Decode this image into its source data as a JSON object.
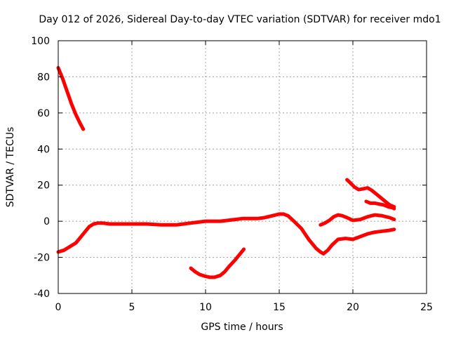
{
  "chart_data": {
    "type": "line",
    "title": "Day 012 of 2026, Sidereal Day-to-day VTEC variation (SDTVAR) for receiver mdo1",
    "xlabel": "GPS time / hours",
    "ylabel": "SDTVAR / TECUs",
    "xlim": [
      0,
      25
    ],
    "ylim": [
      -40,
      100
    ],
    "xticks": [
      0,
      5,
      10,
      15,
      20,
      25
    ],
    "yticks": [
      -40,
      -20,
      0,
      20,
      40,
      60,
      80,
      100
    ],
    "xtick_labels": [
      "0",
      "5",
      "10",
      "15",
      "20",
      "25"
    ],
    "ytick_labels": [
      "-40",
      "-20",
      "0",
      "20",
      "40",
      "60",
      "80",
      "100"
    ],
    "grid": true,
    "color": "#ff0000",
    "series": [
      {
        "name": "segment-1",
        "x": [
          0.0,
          0.3,
          0.6,
          0.9,
          1.2,
          1.5,
          1.7
        ],
        "y": [
          85,
          79,
          72,
          65,
          59,
          54,
          51
        ]
      },
      {
        "name": "segment-2",
        "x": [
          0.0,
          0.4,
          0.8,
          1.2,
          1.5,
          1.8,
          2.1,
          2.4,
          2.7,
          3.0,
          3.5,
          4.0,
          5.0,
          6.0,
          7.0,
          7.5,
          8.0,
          9.0,
          9.5,
          10.0,
          10.5,
          11.0,
          11.5,
          12.0,
          12.5,
          13.0,
          13.5,
          14.0,
          14.5,
          15.0,
          15.3,
          15.6,
          16.0,
          16.5,
          17.0,
          17.5,
          17.8,
          18.0,
          18.3,
          18.6,
          19.0,
          19.5,
          20.0,
          20.5,
          21.0,
          21.5,
          22.0,
          22.5,
          22.8
        ],
        "y": [
          -17,
          -16,
          -14,
          -12,
          -9,
          -6,
          -3,
          -1.5,
          -1,
          -1,
          -1.5,
          -1.5,
          -1.5,
          -1.5,
          -2,
          -2,
          -2,
          -1,
          -0.5,
          0,
          0,
          0,
          0.5,
          1,
          1.5,
          1.5,
          1.5,
          2,
          3,
          4,
          4,
          3,
          0,
          -4,
          -10,
          -15,
          -17,
          -18,
          -16,
          -13,
          -10,
          -9.5,
          -10,
          -8.5,
          -7,
          -6,
          -5.5,
          -5,
          -4.5
        ]
      },
      {
        "name": "segment-3",
        "x": [
          9.0,
          9.3,
          9.6,
          10.0,
          10.3,
          10.6,
          11.0,
          11.3,
          11.6,
          12.0,
          12.3,
          12.6
        ],
        "y": [
          -26,
          -28,
          -29.5,
          -30.5,
          -31,
          -31,
          -30,
          -28,
          -25,
          -21.5,
          -18.5,
          -15.5
        ]
      },
      {
        "name": "segment-4",
        "x": [
          17.8,
          18.1,
          18.4,
          18.7,
          19.0,
          19.3,
          19.6,
          20.0,
          20.5,
          21.0,
          21.5,
          22.0,
          22.5,
          22.8
        ],
        "y": [
          -2,
          -1,
          0.5,
          2.5,
          3.5,
          3,
          2,
          0.5,
          1,
          2.5,
          3.5,
          3,
          2,
          1
        ]
      },
      {
        "name": "segment-5",
        "x": [
          19.6,
          19.8,
          20.1,
          20.4,
          20.7,
          21.0,
          21.3,
          21.6,
          21.9,
          22.2,
          22.5,
          22.8
        ],
        "y": [
          23,
          21.5,
          19,
          17.5,
          18,
          18.5,
          17,
          15,
          13,
          11,
          9,
          8
        ]
      },
      {
        "name": "segment-6",
        "x": [
          20.9,
          21.2,
          21.5,
          21.8,
          22.1,
          22.4,
          22.7,
          22.8
        ],
        "y": [
          11,
          10,
          10,
          9.5,
          9,
          8,
          7.5,
          7
        ]
      }
    ]
  }
}
